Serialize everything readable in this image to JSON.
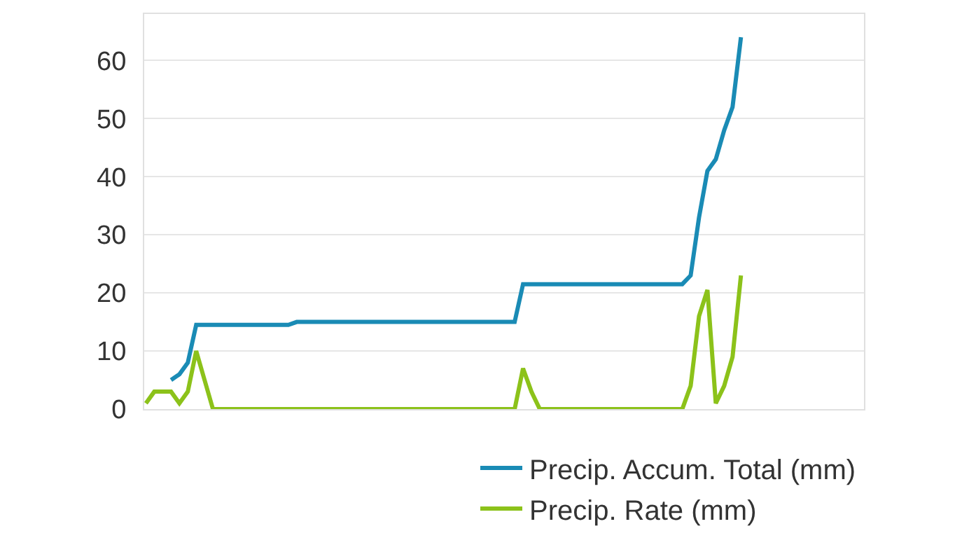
{
  "chart_data": {
    "type": "line",
    "categories": [
      null,
      null,
      null,
      null,
      null,
      null,
      null,
      null,
      null,
      null,
      null,
      null,
      null,
      null,
      null,
      null,
      null,
      null,
      null,
      null,
      null,
      null,
      null,
      null,
      null,
      null,
      null,
      null,
      null,
      null,
      null,
      null,
      null,
      null,
      null,
      null,
      null,
      null,
      null,
      null,
      null,
      null,
      null,
      null,
      null,
      null,
      null,
      null,
      null,
      null,
      null,
      null,
      null,
      null,
      null,
      null,
      null,
      null,
      null,
      null,
      null,
      null,
      null,
      null,
      null,
      null,
      null,
      null,
      null,
      null,
      null,
      null
    ],
    "series": [
      {
        "name": "Precip. Accum. Total (mm)",
        "color": "#1a8bb5",
        "values": [
          null,
          null,
          null,
          5,
          6,
          8,
          14.5,
          14.5,
          14.5,
          14.5,
          14.5,
          14.5,
          14.5,
          14.5,
          14.5,
          14.5,
          14.5,
          14.5,
          15,
          15,
          15,
          15,
          15,
          15,
          15,
          15,
          15,
          15,
          15,
          15,
          15,
          15,
          15,
          15,
          15,
          15,
          15,
          15,
          15,
          15,
          15,
          15,
          15,
          15,
          15,
          21.5,
          21.5,
          21.5,
          21.5,
          21.5,
          21.5,
          21.5,
          21.5,
          21.5,
          21.5,
          21.5,
          21.5,
          21.5,
          21.5,
          21.5,
          21.5,
          21.5,
          21.5,
          21.5,
          21.5,
          23,
          33,
          41,
          43,
          48,
          52,
          64
        ]
      },
      {
        "name": "Precip. Rate (mm)",
        "color": "#8cc21a",
        "values": [
          1,
          3,
          3,
          3,
          1,
          3,
          10,
          5,
          0,
          0,
          0,
          0,
          0,
          0,
          0,
          0,
          0,
          0,
          0,
          0,
          0,
          0,
          0,
          0,
          0,
          0,
          0,
          0,
          0,
          0,
          0,
          0,
          0,
          0,
          0,
          0,
          0,
          0,
          0,
          0,
          0,
          0,
          0,
          0,
          0,
          7,
          3,
          0,
          0,
          0,
          0,
          0,
          0,
          0,
          0,
          0,
          0,
          0,
          0,
          0,
          0,
          0,
          0,
          0,
          0,
          4,
          16,
          20.5,
          1,
          4,
          9,
          23
        ]
      }
    ],
    "ylim": [
      0,
      68
    ],
    "yticks": [
      0,
      10,
      20,
      30,
      40,
      50,
      60
    ],
    "grid": "y",
    "legend": "bottom",
    "tick_labels": "y",
    "line_style": "solid",
    "marker": "none"
  }
}
